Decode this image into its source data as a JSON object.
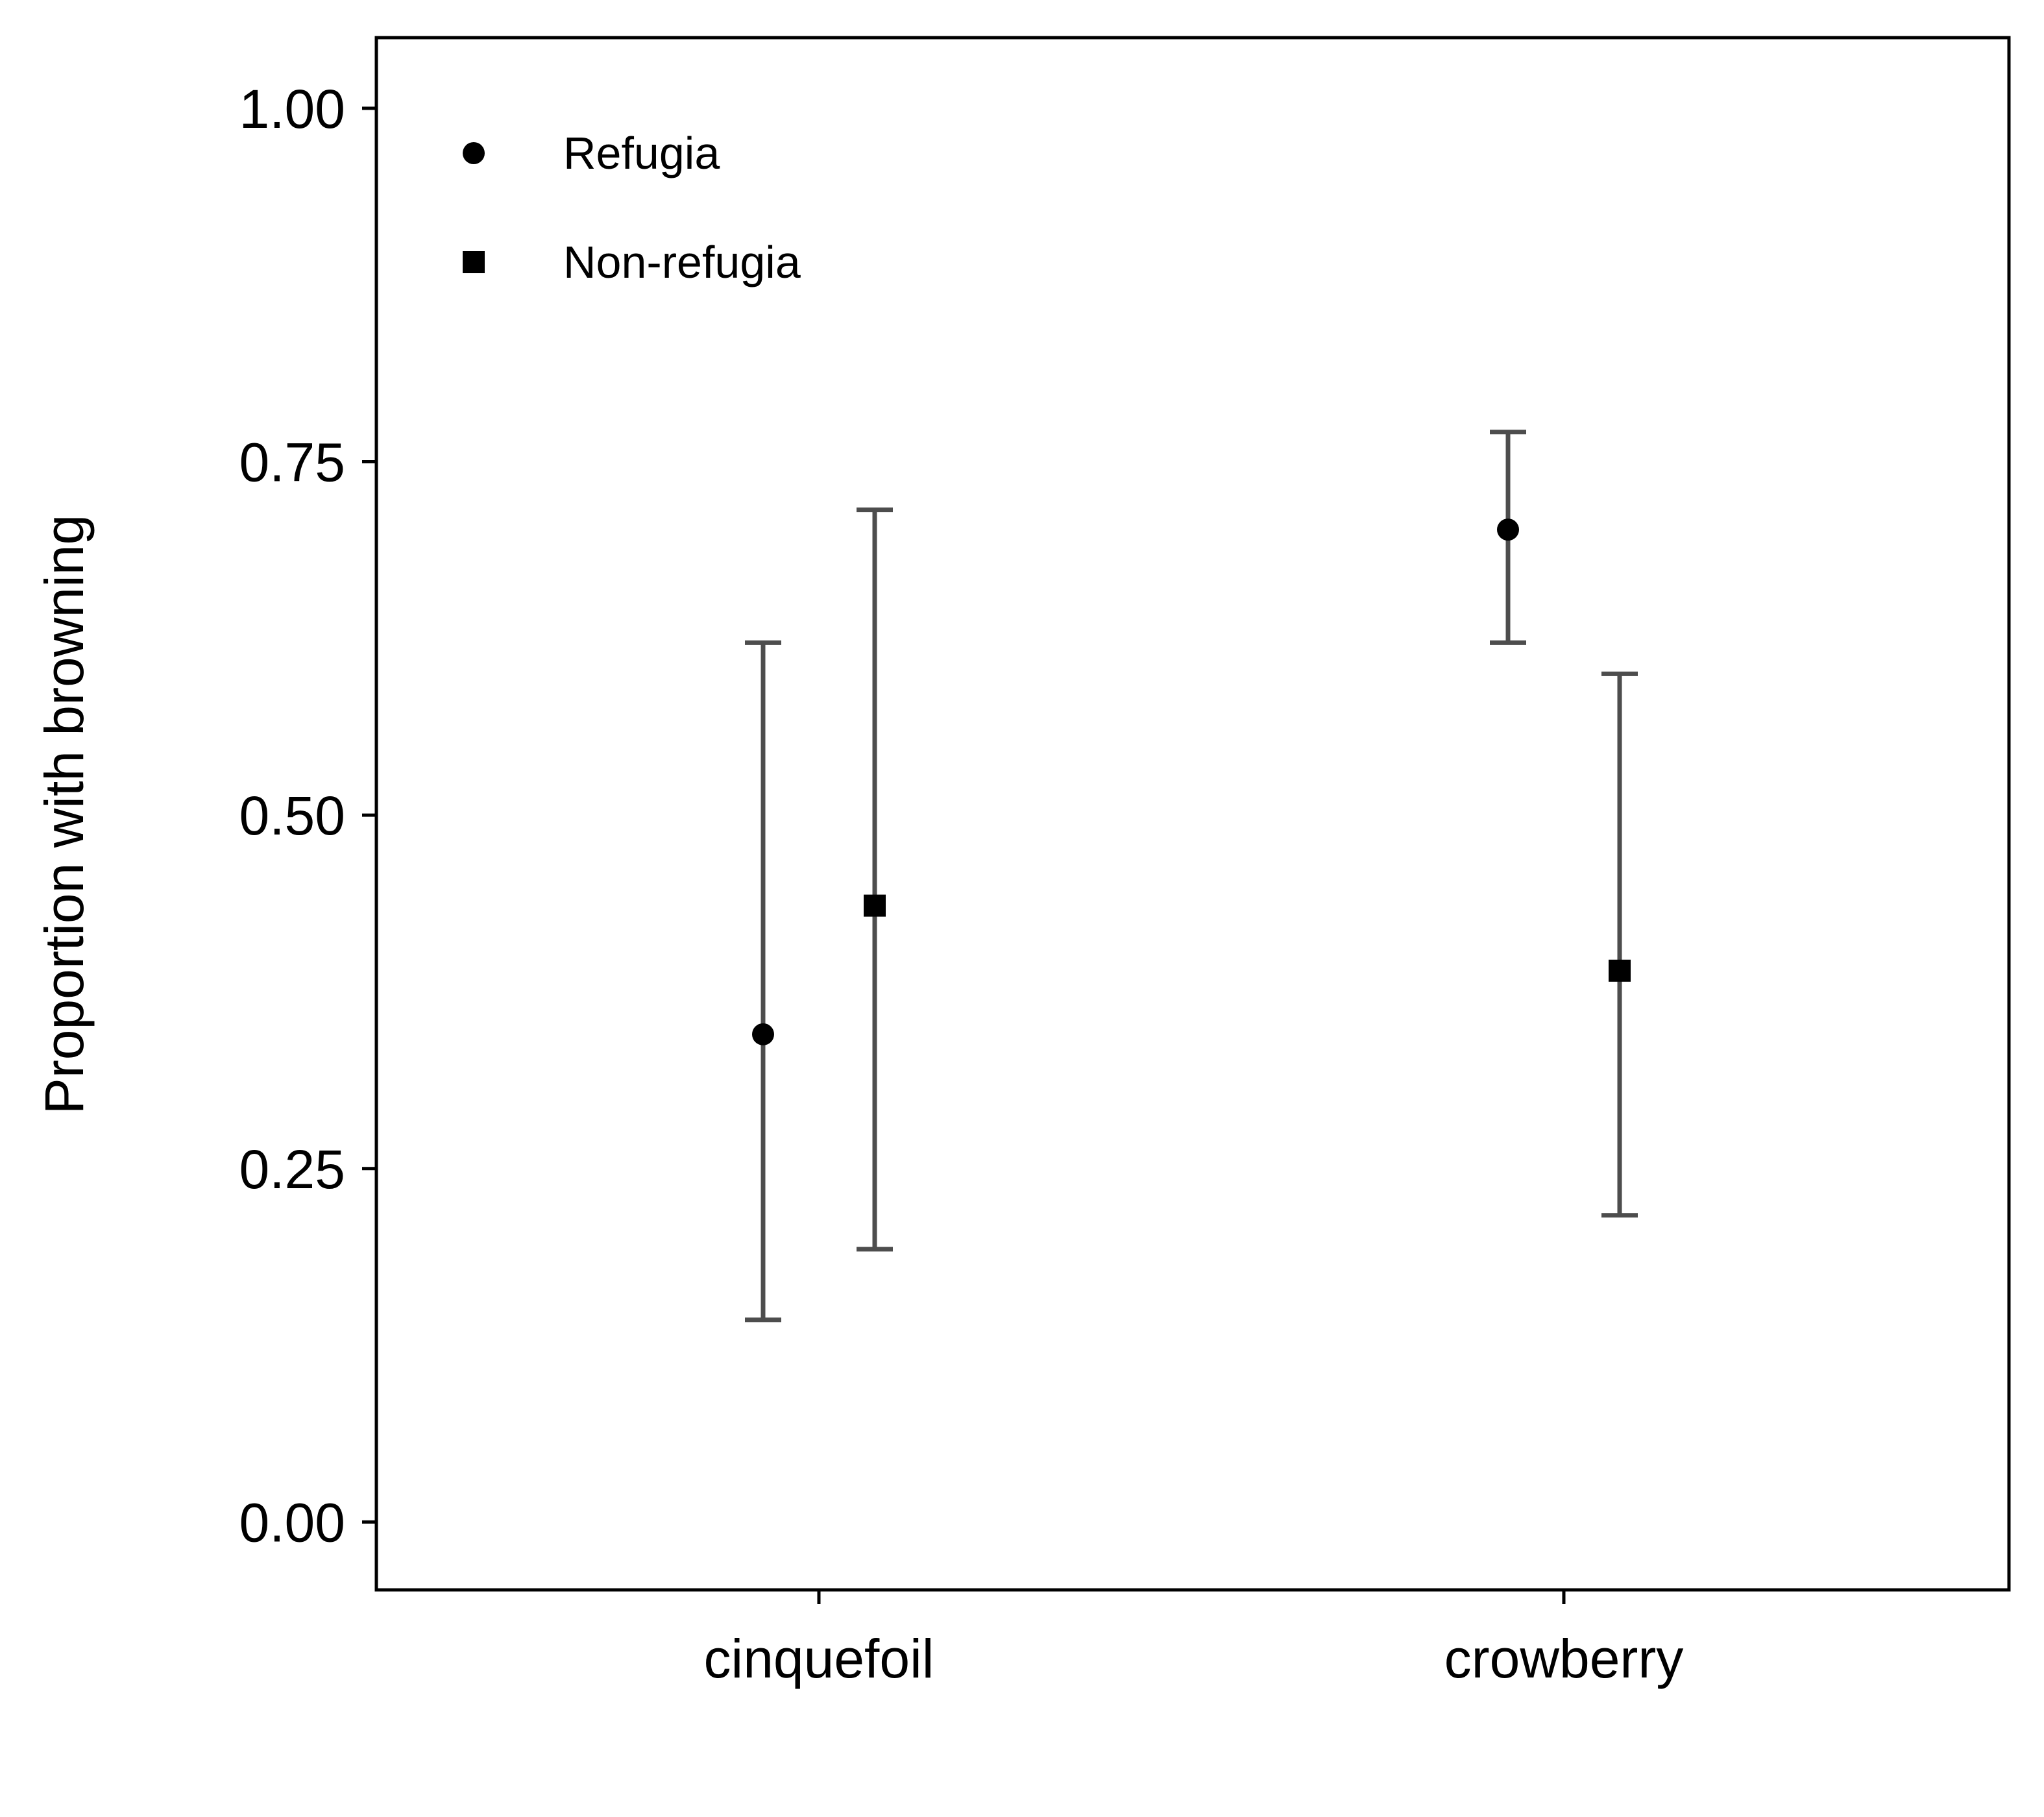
{
  "chart_data": {
    "type": "scatter",
    "title": "",
    "xlabel": "",
    "ylabel": "Proportion with browning",
    "categories": [
      "cinquefoil",
      "crowberry"
    ],
    "ylim": [
      -0.048,
      1.05
    ],
    "yticks": [
      0.0,
      0.25,
      0.5,
      0.75,
      1.0
    ],
    "ytick_labels": [
      "0.00",
      "0.25",
      "0.50",
      "0.75",
      "1.00"
    ],
    "grid": false,
    "legend_position": "top-left",
    "series": [
      {
        "name": "Refugia",
        "marker": "circle",
        "color": "#000000",
        "values": [
          0.345,
          0.702
        ],
        "lower": [
          0.143,
          0.622
        ],
        "upper": [
          0.622,
          0.771
        ]
      },
      {
        "name": "Non-refugia",
        "marker": "square",
        "color": "#000000",
        "values": [
          0.436,
          0.39
        ],
        "lower": [
          0.193,
          0.217
        ],
        "upper": [
          0.716,
          0.6
        ]
      }
    ],
    "errorbar_color": "#4d4d4d"
  }
}
